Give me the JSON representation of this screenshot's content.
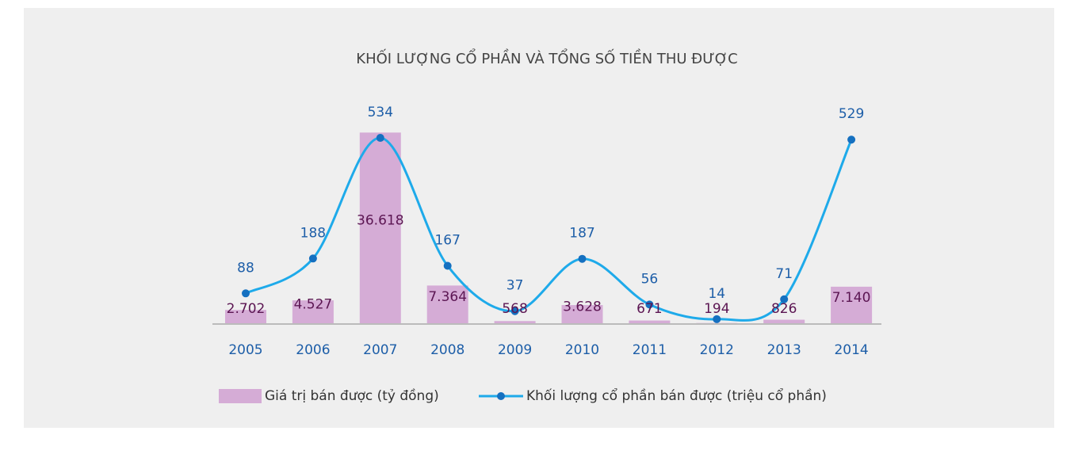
{
  "chart_data": {
    "type": "bar-line",
    "title": "KHỐI LƯỢNG CỔ PHẦN VÀ TỔNG SỐ TIỀN THU ĐƯỢC",
    "categories": [
      "2005",
      "2006",
      "2007",
      "2008",
      "2009",
      "2010",
      "2011",
      "2012",
      "2013",
      "2014"
    ],
    "series": [
      {
        "name": "Giá trị bán được (tỷ đồng)",
        "type": "bar",
        "color": "#d5acd6",
        "values": [
          2702,
          4527,
          36618,
          7364,
          568,
          3628,
          671,
          194,
          826,
          7140
        ],
        "value_labels": [
          "2.702",
          "4.527",
          "36.618",
          "7.364",
          "568",
          "3.628",
          "671",
          "194",
          "826",
          "7.140"
        ]
      },
      {
        "name": "Khối lượng cổ phần bán được (triệu cổ phần)",
        "type": "line",
        "axis": "y2",
        "color": "#1eaaea",
        "values": [
          88,
          188,
          534,
          167,
          37,
          187,
          56,
          14,
          71,
          529
        ]
      }
    ],
    "ylim": [
      0,
      40000
    ],
    "y2lim": [
      0,
      600
    ]
  }
}
